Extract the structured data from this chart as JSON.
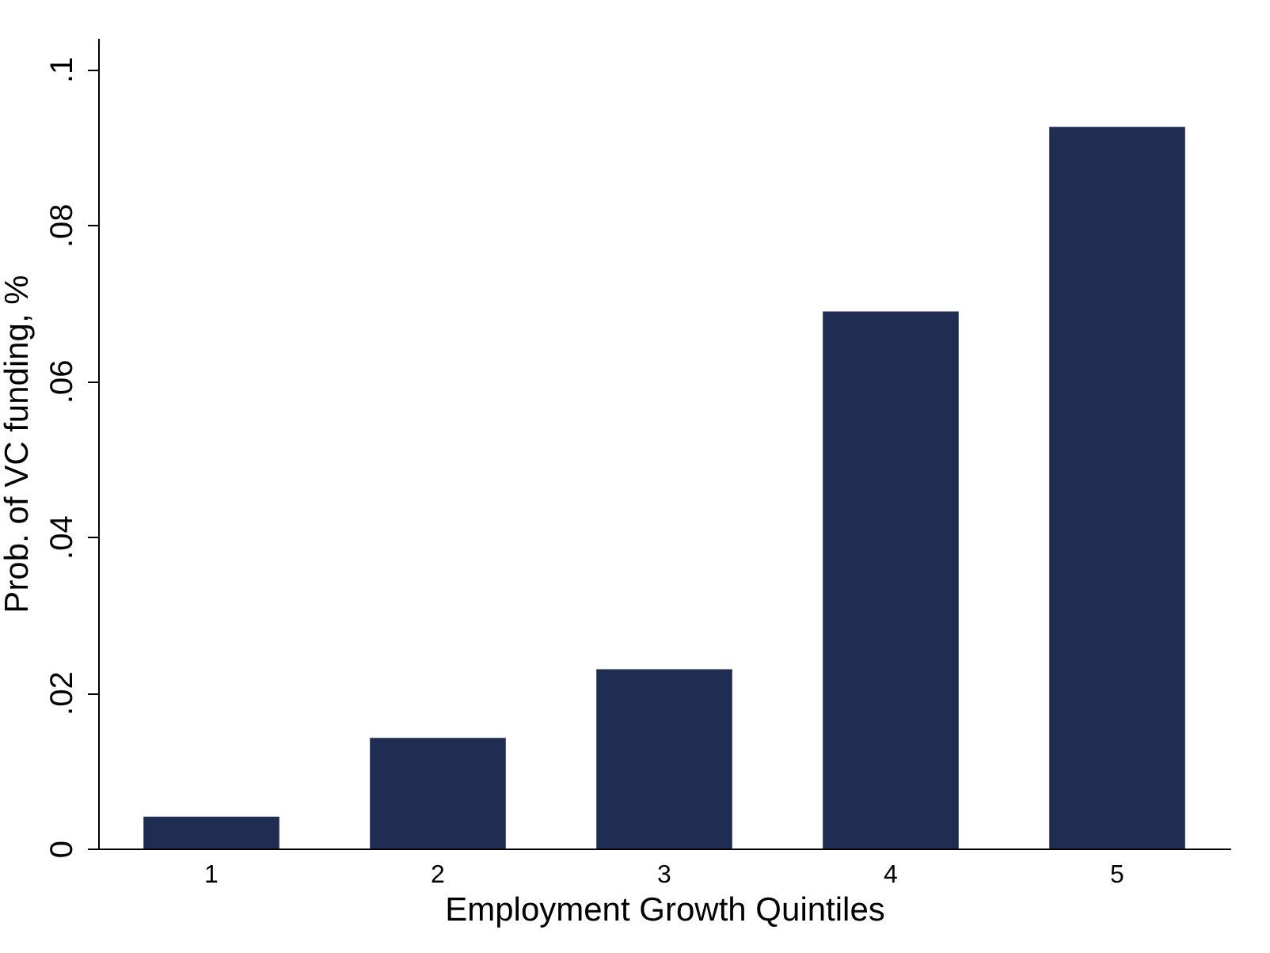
{
  "chart_data": {
    "type": "bar",
    "xlabel": "Employment Growth Quintiles",
    "ylabel": "Prob. of VC funding, %",
    "categories": [
      "1",
      "2",
      "3",
      "4",
      "5"
    ],
    "values": [
      0.0041,
      0.0142,
      0.023,
      0.0689,
      0.0926
    ],
    "color": "#202d53",
    "ylim": [
      0,
      0.104
    ],
    "yticks": [
      0,
      {
        "value": 0.02,
        "label": ".02"
      },
      {
        "value": 0.04,
        "label": ".04"
      },
      {
        "value": 0.06,
        "label": ".06"
      },
      {
        "value": 0.08,
        "label": ".08"
      },
      {
        "value": 0.1,
        "label": ".1"
      }
    ],
    "grid": false
  }
}
